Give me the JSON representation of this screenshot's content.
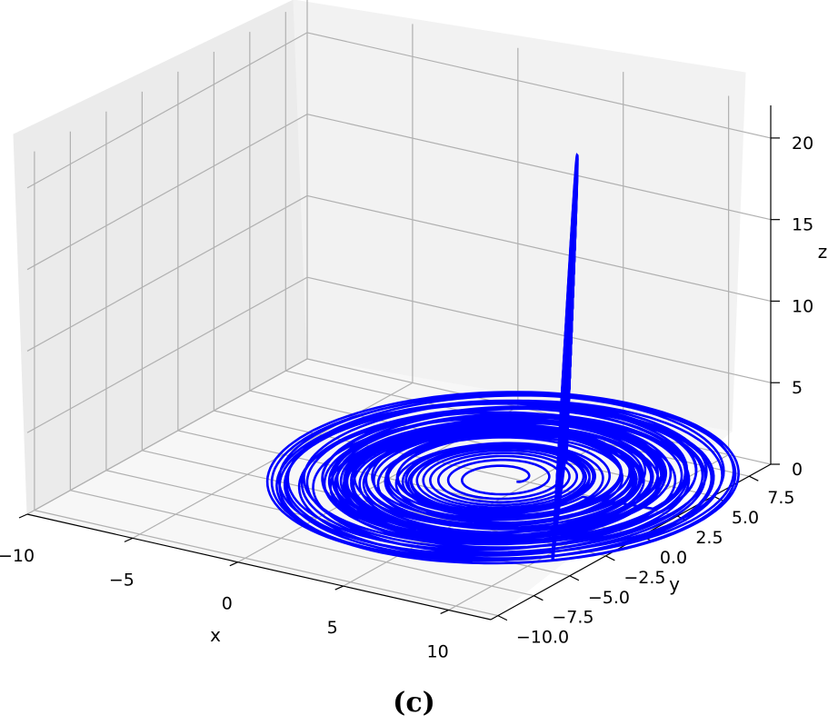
{
  "caption": "(c)",
  "colors": {
    "trajectory": "#0000ff",
    "pane_left": "#ebebeb",
    "pane_back": "#f2f2f2",
    "pane_floor": "#f7f7f7",
    "grid": "#b0b0b0"
  },
  "chart_data": {
    "type": "line3d",
    "title": "",
    "xlabel": "x",
    "ylabel": "y",
    "zlabel": "z",
    "xlim": [
      -10,
      12
    ],
    "ylim": [
      -10.5,
      9
    ],
    "zlim": [
      0,
      22
    ],
    "x_ticks": [
      "−10",
      "−5",
      "0",
      "5",
      "10"
    ],
    "y_ticks": [
      "−10.0",
      "−7.5",
      "−5.0",
      "−2.5",
      "0.0",
      "2.5",
      "5.0",
      "7.5"
    ],
    "z_ticks": [
      "0",
      "5",
      "10",
      "15",
      "20"
    ],
    "x_tick_values": [
      -10,
      -5,
      0,
      5,
      10
    ],
    "y_tick_values": [
      -10,
      -7.5,
      -5,
      -2.5,
      0,
      2.5,
      5,
      7.5
    ],
    "z_tick_values": [
      0,
      5,
      10,
      15,
      20
    ],
    "grid": true,
    "series": [
      {
        "description": "Rössler-type chaotic attractor trajectory",
        "spiral_center": [
          3.8,
          2.3
        ],
        "spiral_max_radius": 9.3,
        "fold_peak_z": 22,
        "fold_position": [
          10.5,
          -2
        ]
      }
    ]
  }
}
